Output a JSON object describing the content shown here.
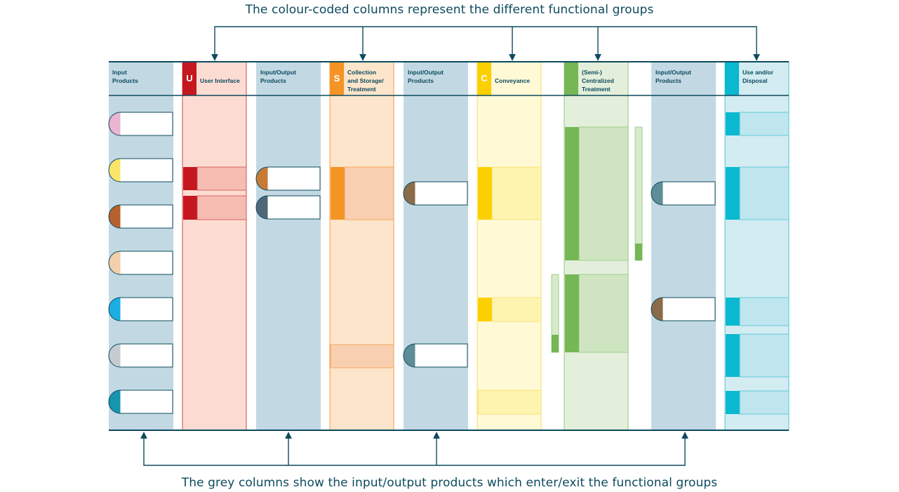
{
  "captions": {
    "top": "The colour-coded columns represent the different functional groups",
    "bottom": "The grey columns show the input/output products which enter/exit the functional groups"
  },
  "headers": {
    "input_products": "Input\nProducts",
    "user_interface": "User Interface",
    "io_products_1": "Input/Output\nProducts",
    "collection": "Collection\nand Storage/\nTreatment",
    "io_products_2": "Input/Output\nProducts",
    "conveyance": "Conveyance",
    "semi_centralized": "(Semi-)\nCentralized\nTreatment",
    "io_products_3": "Input/Output\nProducts",
    "use_disposal": "Use and/or\nDisposal"
  },
  "badges": {
    "u": "U",
    "s": "S",
    "c": "C"
  },
  "colors": {
    "frame": "#0d4a5e",
    "grey": "#c2d9e4",
    "user_interface": "#c5171f",
    "collection": "#f39425",
    "conveyance": "#fcd000",
    "treatment": "#75b655",
    "disposal": "#0ab8d0"
  },
  "product_colors": {
    "input": [
      "#e9b5d0",
      "#fbe46a",
      "#b6612c",
      "#f3ceaa",
      "#1aaee2",
      "#c4ccd2",
      "#1794ae"
    ],
    "io1": [
      "#c57a36",
      "#4f6878"
    ],
    "io2": [
      "#8a6c4a",
      "#5d8d97"
    ],
    "io3": [
      "#5d8d97",
      "#8a6c4a"
    ]
  }
}
